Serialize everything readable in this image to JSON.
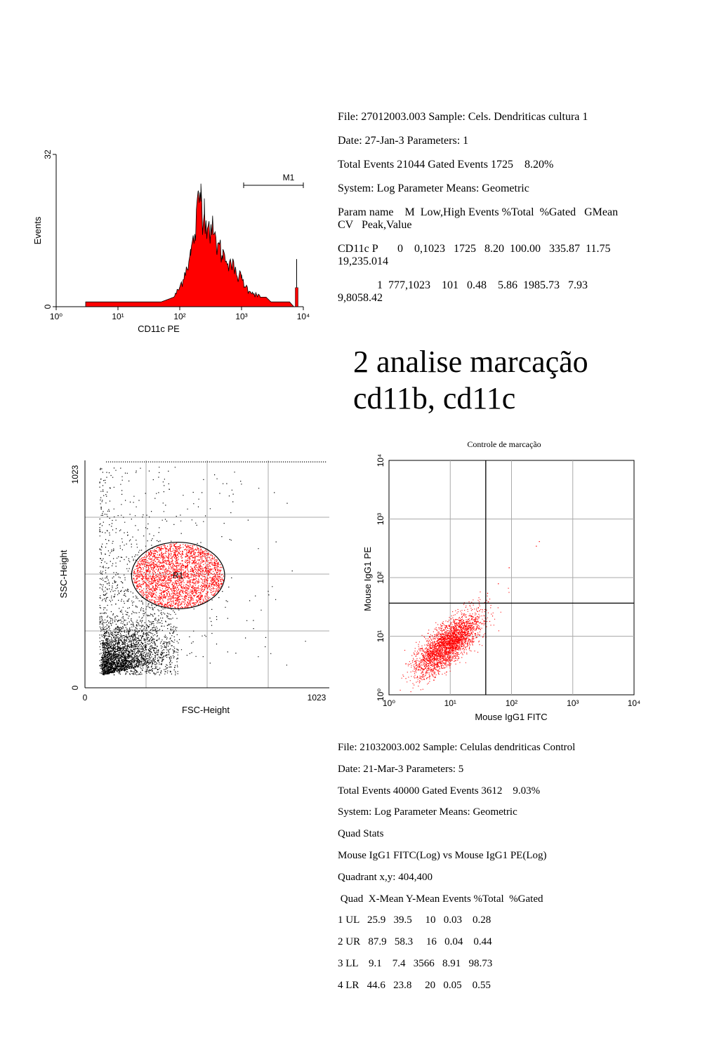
{
  "stats1": {
    "lines": [
      "File: 27012003.003 Sample: Cels. Dendriticas cultura 1",
      "Date: 27-Jan-3 Parameters: 1",
      "Total Events 21044 Gated Events 1725    8.20%",
      "System: Log Parameter Means: Geometric",
      "Param name    M  Low,High Events %Total  %Gated   GMean",
      "CV   Peak,Value",
      "CD11c P       0    0,1023   1725   8.20  100.00   335.87  11.75",
      "19,235.014",
      "              1  777,1023    101   0.48    5.86  1985.73   7.93",
      "9,8058.42"
    ]
  },
  "heading": {
    "line1": "2 analise marcação",
    "line2": "cd11b, cd11c"
  },
  "stats2": {
    "lines": [
      "File: 21032003.002 Sample: Celulas dendriticas Control",
      "Date: 21-Mar-3 Parameters: 5",
      "Total Events 40000 Gated Events 3612    9.03%",
      "System: Log Parameter Means: Geometric",
      "Quad Stats",
      "Mouse IgG1 FITC(Log) vs Mouse IgG1 PE(Log)",
      "Quadrant x,y: 404,400",
      " Quad  X-Mean Y-Mean Events %Total  %Gated",
      "1 UL   25.9   39.5     10   0.03    0.28",
      "2 UR   87.9   58.3     16   0.04    0.44",
      "3 LL    9.1    7.4   3566   8.91   98.73",
      "4 LR   44.6   23.8     20   0.05    0.55"
    ]
  },
  "chart_data": [
    {
      "type": "area",
      "xlabel": "CD11c PE",
      "ylabel": "Events",
      "x_scale": "log",
      "xlim": [
        1,
        10000
      ],
      "ylim": [
        0,
        32
      ],
      "x_ticks": [
        "10⁰",
        "10¹",
        "10²",
        "10³",
        "10⁴"
      ],
      "y_ticks": [
        "0",
        "32"
      ],
      "fill_color": "#ff0000",
      "marker": {
        "name": "M1",
        "range_channels": [
          777,
          1023
        ]
      },
      "curve": {
        "x": [
          3,
          10,
          30,
          50,
          80,
          100,
          120,
          150,
          180,
          200,
          220,
          250,
          280,
          300,
          350,
          400,
          500,
          600,
          700,
          800,
          1000,
          1200,
          1500,
          2000,
          2500,
          3000,
          4000,
          5000,
          6000,
          7000,
          7500,
          8000
        ],
        "y": [
          1,
          1,
          1,
          1,
          2,
          4,
          7,
          11,
          16,
          22,
          24,
          20,
          18,
          17,
          15,
          13,
          11,
          10,
          9,
          7,
          6,
          4,
          3,
          2,
          2,
          1,
          1,
          1,
          1,
          0,
          0,
          0
        ],
        "spike": {
          "x": 7800,
          "y": 10
        }
      }
    },
    {
      "type": "scatter",
      "xlabel": "FSC-Height",
      "ylabel": "SSC-Height",
      "xlim": [
        0,
        1023
      ],
      "ylim": [
        0,
        1023
      ],
      "x_ticks": [
        "0",
        "1023"
      ],
      "y_ticks": [
        "0",
        "1023"
      ],
      "region": {
        "name": "R1",
        "center": [
          390,
          505
        ],
        "radius": [
          195,
          150
        ],
        "color": "#ff0000"
      },
      "point_colors": {
        "ungated": "#000000",
        "gated": "#ff0000"
      }
    },
    {
      "type": "scatter",
      "title": "Controle de marcação",
      "xlabel": "Mouse IgG1 FITC",
      "ylabel": "Mouse IgG1 PE",
      "x_scale": "log",
      "y_scale": "log",
      "xlim": [
        1,
        10000
      ],
      "ylim": [
        1,
        10000
      ],
      "x_ticks": [
        "10⁰",
        "10¹",
        "10²",
        "10³",
        "10⁴"
      ],
      "y_ticks": [
        "10⁰",
        "10¹",
        "10²",
        "10³",
        "10⁴"
      ],
      "quadrant": {
        "x": 404,
        "y": 400
      },
      "point_color": "#ff0000",
      "centroid": [
        9.1,
        7.4
      ]
    }
  ]
}
